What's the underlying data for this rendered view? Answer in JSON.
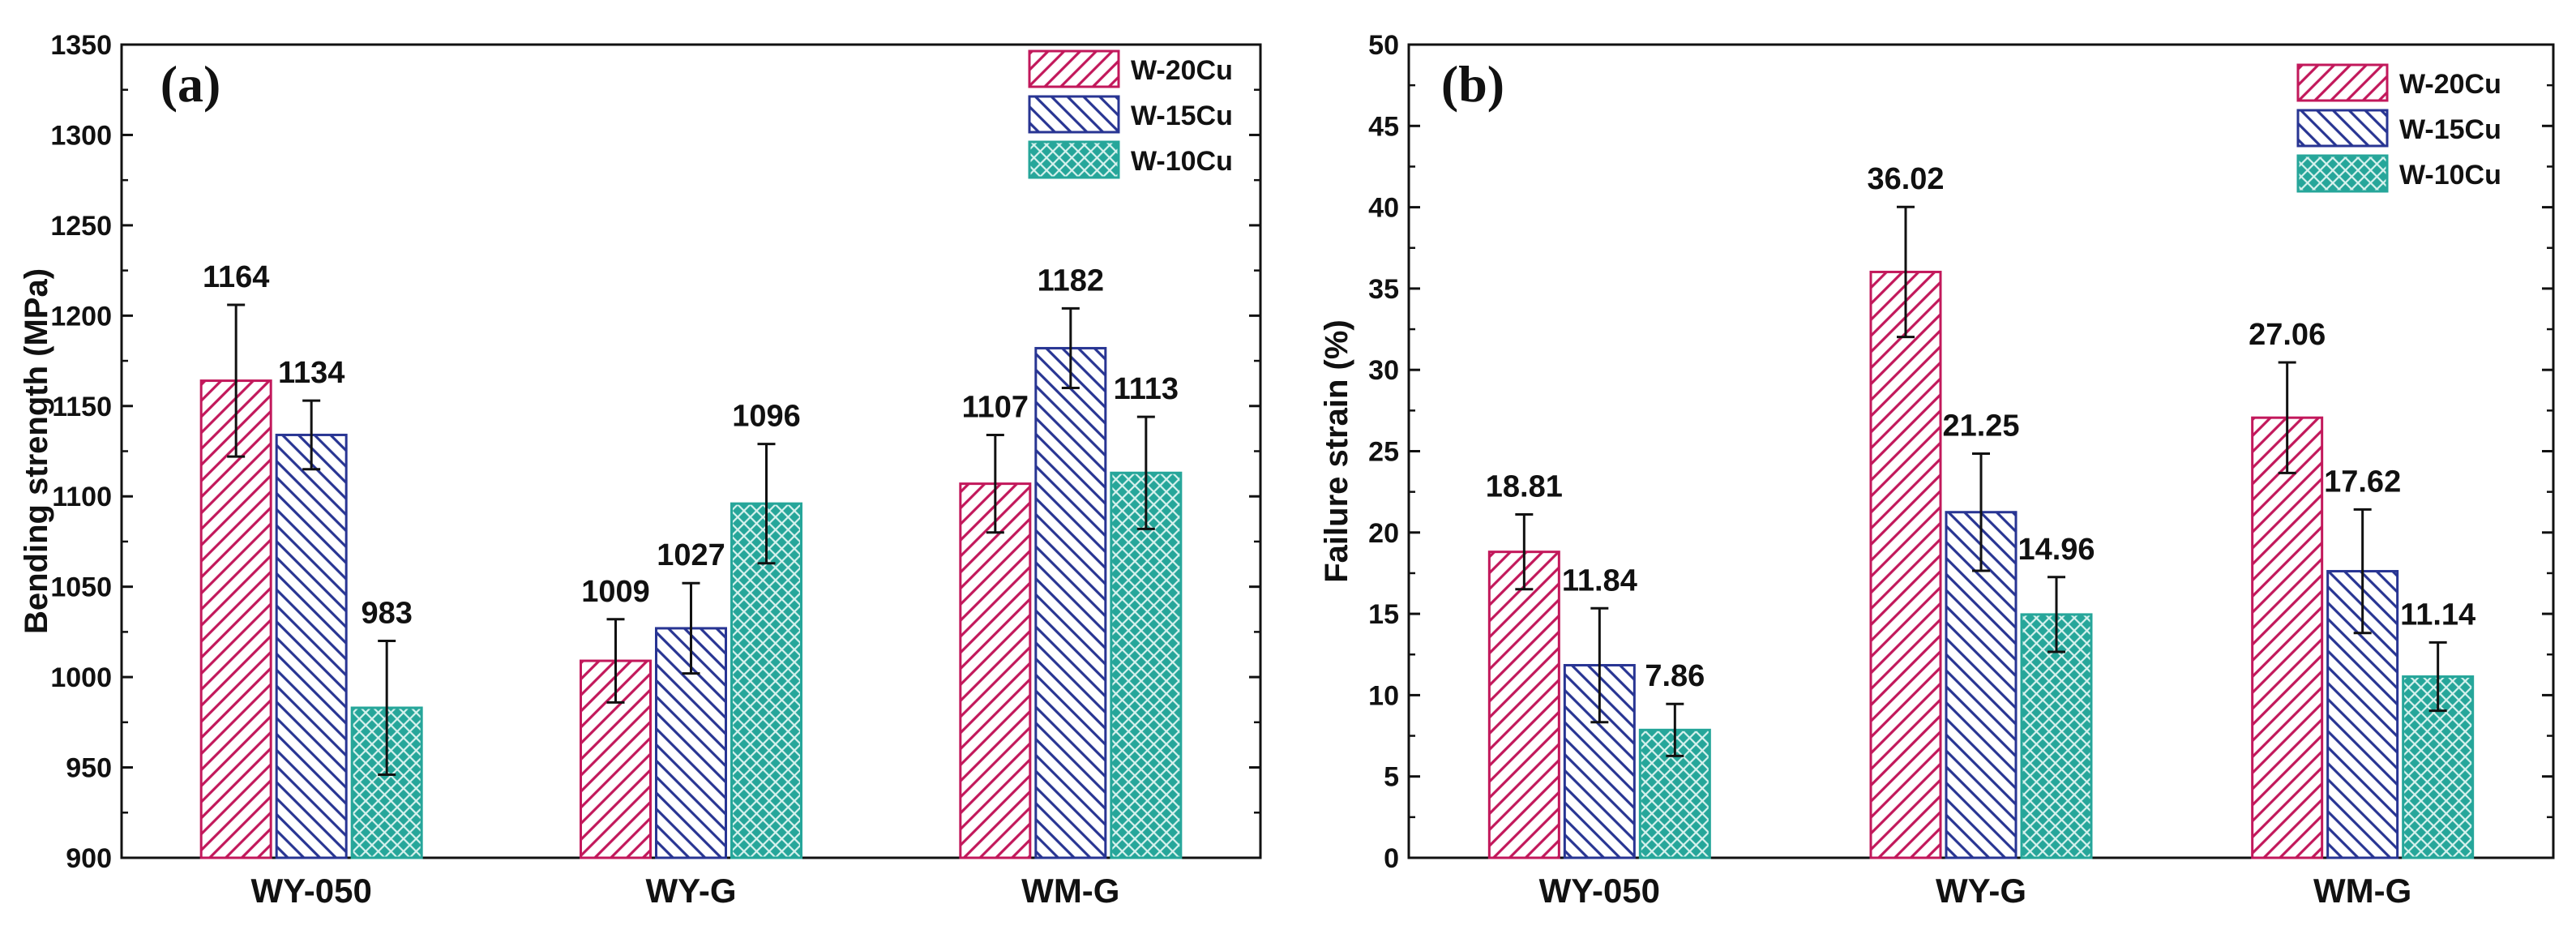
{
  "colors": {
    "W-20Cu": "#c2185b",
    "W-15Cu": "#283593",
    "W-10Cu": "#26a69a"
  },
  "chart_data": [
    {
      "type": "bar",
      "panel": "(a)",
      "ylabel": "Bending strength (MPa)",
      "ylim": [
        900,
        1350
      ],
      "yticks": [
        900,
        950,
        1000,
        1050,
        1100,
        1150,
        1200,
        1250,
        1300,
        1350
      ],
      "categories": [
        "WY-050",
        "WY-G",
        "WM-G"
      ],
      "legend": [
        "W-20Cu",
        "W-15Cu",
        "W-10Cu"
      ],
      "legend_position": "top-right",
      "series": [
        {
          "name": "W-20Cu",
          "values": [
            1164,
            1009,
            1107
          ],
          "errors": [
            42,
            23,
            27
          ],
          "labels": [
            "1164",
            "1009",
            "1107"
          ]
        },
        {
          "name": "W-15Cu",
          "values": [
            1134,
            1027,
            1182
          ],
          "errors": [
            19,
            25,
            22
          ],
          "labels": [
            "1134",
            "1027",
            "1182"
          ]
        },
        {
          "name": "W-10Cu",
          "values": [
            983,
            1096,
            1113
          ],
          "errors": [
            37,
            33,
            31
          ],
          "labels": [
            "983",
            "1096",
            "1113"
          ]
        }
      ]
    },
    {
      "type": "bar",
      "panel": "(b)",
      "ylabel": "Failure strain (%)",
      "ylim": [
        0,
        50
      ],
      "yticks": [
        0,
        5,
        10,
        15,
        20,
        25,
        30,
        35,
        40,
        45,
        50
      ],
      "categories": [
        "WY-050",
        "WY-G",
        "WM-G"
      ],
      "legend": [
        "W-20Cu",
        "W-15Cu",
        "W-10Cu"
      ],
      "legend_position": "top-right",
      "series": [
        {
          "name": "W-20Cu",
          "values": [
            18.81,
            36.02,
            27.06
          ],
          "errors": [
            2.3,
            4.0,
            3.4
          ],
          "labels": [
            "18.81",
            "36.02",
            "27.06"
          ]
        },
        {
          "name": "W-15Cu",
          "values": [
            11.84,
            21.25,
            17.62
          ],
          "errors": [
            3.5,
            3.6,
            3.8
          ],
          "labels": [
            "11.84",
            "21.25",
            "17.62"
          ]
        },
        {
          "name": "W-10Cu",
          "values": [
            7.86,
            14.96,
            11.14
          ],
          "errors": [
            1.6,
            2.3,
            2.1
          ],
          "labels": [
            "7.86",
            "14.96",
            "11.14"
          ]
        }
      ]
    }
  ]
}
